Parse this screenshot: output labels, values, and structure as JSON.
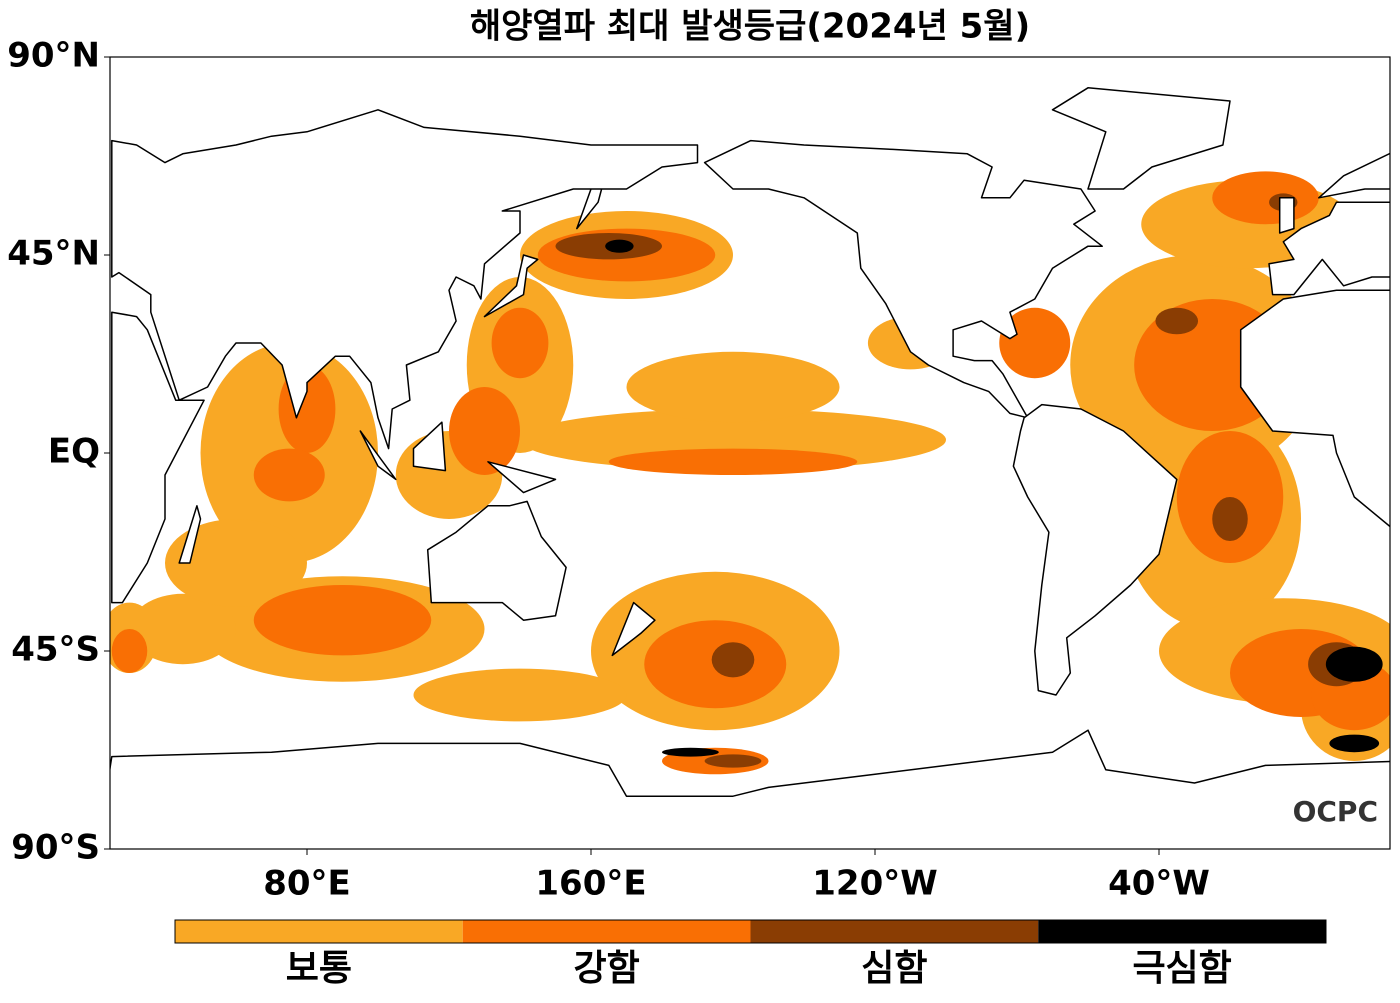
{
  "map": {
    "title": "해양열파 최대 발생등급(2024년 5월)",
    "lat_ticks": [
      {
        "value": 90,
        "label": "90°N"
      },
      {
        "value": 45,
        "label": "45°N"
      },
      {
        "value": 0,
        "label": "EQ"
      },
      {
        "value": -45,
        "label": "45°S"
      },
      {
        "value": -90,
        "label": "90°S"
      }
    ],
    "lon_ticks": [
      {
        "value": 80,
        "label": "80°E"
      },
      {
        "value": 160,
        "label": "160°E"
      },
      {
        "value": 240,
        "label": "120°W"
      },
      {
        "value": 320,
        "label": "40°W"
      }
    ],
    "legend": [
      {
        "label": "보통",
        "color": "#f9a825"
      },
      {
        "label": "강함",
        "color": "#f96f04"
      },
      {
        "label": "심함",
        "color": "#8a3d03"
      },
      {
        "label": "극심함",
        "color": "#000000"
      }
    ],
    "logo": "OCPC"
  }
}
